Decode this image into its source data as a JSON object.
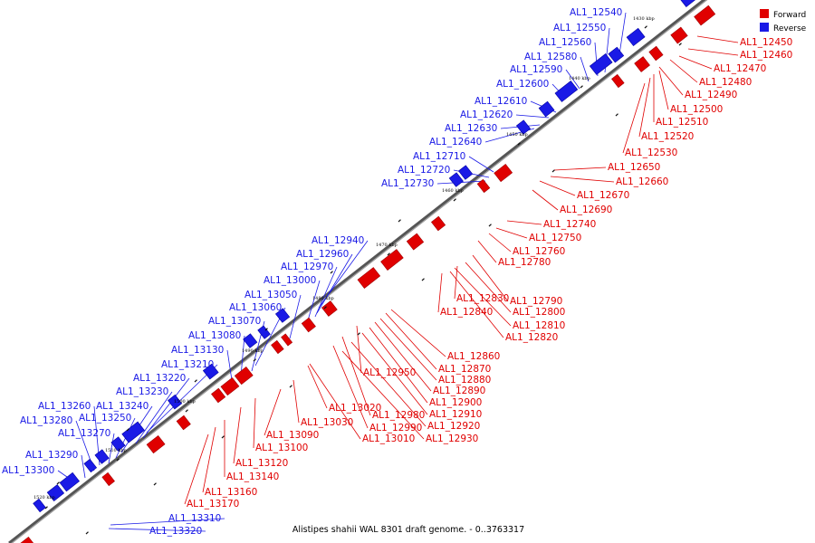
{
  "caption": "Alistipes shahii WAL 8301 draft genome. - 0..3763317",
  "legend": [
    {
      "label": "Forward",
      "color": "#e00000"
    },
    {
      "label": "Reverse",
      "color": "#1a1ae6"
    }
  ],
  "colors": {
    "forward": "#e00000",
    "reverse": "#1a1ae6",
    "backbone": "#444444"
  },
  "ticks": [
    "1430 kbp",
    "1440 kbp",
    "1450 kbp",
    "1460 kbp",
    "1470 kbp",
    "1480 kbp",
    "1490 kbp",
    "1500 kbp",
    "1510 kbp",
    "1520 kbp"
  ],
  "forward_genes": [
    "AL1_12450",
    "AL1_12460",
    "AL1_12470",
    "AL1_12480",
    "AL1_12490",
    "AL1_12500",
    "AL1_12510",
    "AL1_12520",
    "AL1_12530",
    "AL1_12650",
    "AL1_12660",
    "AL1_12670",
    "AL1_12690",
    "AL1_12740",
    "AL1_12750",
    "AL1_12760",
    "AL1_12780",
    "AL1_12790",
    "AL1_12830",
    "AL1_12800",
    "AL1_12840",
    "AL1_12810",
    "AL1_12820",
    "AL1_12860",
    "AL1_12870",
    "AL1_12880",
    "AL1_12950",
    "AL1_12890",
    "AL1_12900",
    "AL1_13020",
    "AL1_12910",
    "AL1_12980",
    "AL1_12920",
    "AL1_13030",
    "AL1_12990",
    "AL1_13090",
    "AL1_12930",
    "AL1_13010",
    "AL1_13100",
    "AL1_13120",
    "AL1_13140",
    "AL1_13160",
    "AL1_13170"
  ],
  "reverse_genes": [
    "AL1_12540",
    "AL1_12550",
    "AL1_12560",
    "AL1_12580",
    "AL1_12590",
    "AL1_12600",
    "AL1_12610",
    "AL1_12620",
    "AL1_12630",
    "AL1_12640",
    "AL1_12710",
    "AL1_12720",
    "AL1_12730",
    "AL1_12940",
    "AL1_12960",
    "AL1_12970",
    "AL1_13000",
    "AL1_13050",
    "AL1_13060",
    "AL1_13070",
    "AL1_13080",
    "AL1_13130",
    "AL1_13210",
    "AL1_13220",
    "AL1_13230",
    "AL1_13260",
    "AL1_13240",
    "AL1_13280",
    "AL1_13250",
    "AL1_13270",
    "AL1_13290",
    "AL1_13300",
    "AL1_13310",
    "AL1_13320"
  ]
}
